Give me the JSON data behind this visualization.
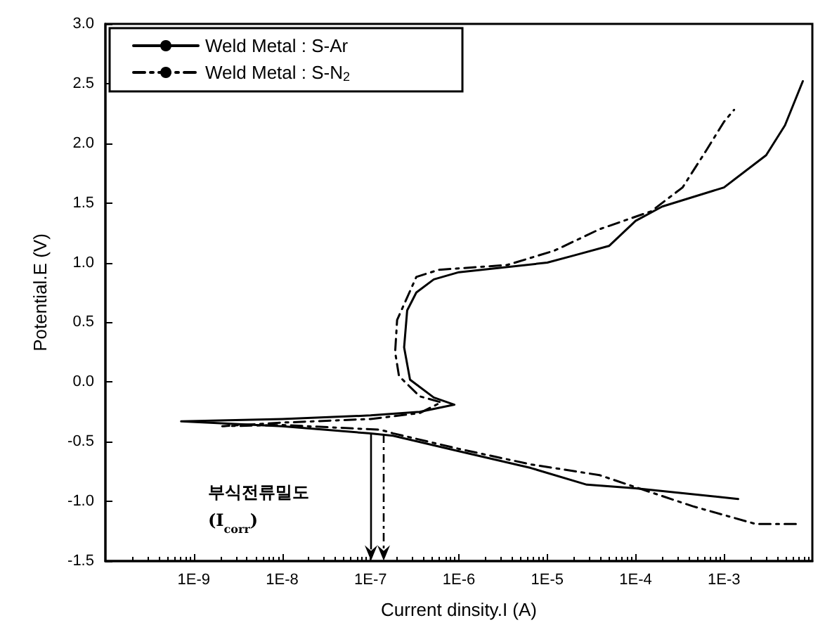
{
  "chart_data": {
    "type": "line",
    "xlabel": "Current dinsity.I (A)",
    "ylabel": "Potential.E (V)",
    "log": "x",
    "xlim": [
      1e-10,
      0.01
    ],
    "xticks": [
      {
        "value": 1e-09,
        "label": "1E-9"
      },
      {
        "value": 1e-08,
        "label": "1E-8"
      },
      {
        "value": 1e-07,
        "label": "1E-7"
      },
      {
        "value": 1e-06,
        "label": "1E-6"
      },
      {
        "value": 1e-05,
        "label": "1E-5"
      },
      {
        "value": 0.0001,
        "label": "1E-4"
      },
      {
        "value": 0.001,
        "label": "1E-3"
      }
    ],
    "ylim": [
      -1.5,
      3.0
    ],
    "yticks": [
      {
        "value": -1.5,
        "label": "-1.5"
      },
      {
        "value": -1.0,
        "label": "-1.0"
      },
      {
        "value": -0.5,
        "label": "-0.5"
      },
      {
        "value": 0,
        "label": "0.0"
      },
      {
        "value": 0.5,
        "label": "0.5"
      },
      {
        "value": 1.0,
        "label": "1.0"
      },
      {
        "value": 1.5,
        "label": "1.5"
      },
      {
        "value": 2.0,
        "label": "2.0"
      },
      {
        "value": 2.5,
        "label": "2.5"
      },
      {
        "value": 3.0,
        "label": "3.0"
      }
    ],
    "grid": false,
    "legend": "top left",
    "marker": "none",
    "series": [
      {
        "name": "Weld Metal : S-Ar",
        "color": "#000000",
        "line_style": "solid",
        "x": [
          0.00145,
          0.0001,
          2.8e-05,
          6.5e-06,
          1e-06,
          1.8e-07,
          9.6e-08,
          1e-08,
          7.2e-10,
          1e-08,
          1e-07,
          3.6e-07,
          8.9e-07,
          5.2e-07,
          2.8e-07,
          2.4e-07,
          2.6e-07,
          3.3e-07,
          5.2e-07,
          1e-06,
          1e-05,
          2e-05,
          5e-05,
          0.0001,
          0.0002,
          0.001,
          0.003,
          0.0049,
          0.0078
        ],
        "values": [
          -0.98,
          -0.89,
          -0.86,
          -0.72,
          -0.58,
          -0.45,
          -0.43,
          -0.37,
          -0.33,
          -0.31,
          -0.28,
          -0.25,
          -0.19,
          -0.13,
          0.02,
          0.29,
          0.6,
          0.75,
          0.86,
          0.92,
          1.0,
          1.06,
          1.14,
          1.35,
          1.47,
          1.63,
          1.9,
          2.15,
          2.52
        ]
      },
      {
        "name": "Weld Metal : S-N$_{2}$",
        "color": "#000000",
        "line_style": "dashed",
        "x": [
          0.0065,
          0.0023,
          0.00044,
          3.9e-05,
          6.5e-06,
          1e-06,
          1.8e-07,
          1.3e-07,
          1e-08,
          2.1e-09,
          1e-08,
          1e-07,
          3.6e-07,
          6.3e-07,
          3.6e-07,
          2.1e-07,
          1.9e-07,
          2e-07,
          3.3e-07,
          5.9e-07,
          3.5e-06,
          1.2e-05,
          3.9e-05,
          0.00015,
          0.00034,
          0.00063,
          0.001,
          0.0013
        ],
        "values": [
          -1.19,
          -1.19,
          -1.04,
          -0.78,
          -0.69,
          -0.56,
          -0.43,
          -0.4,
          -0.36,
          -0.37,
          -0.34,
          -0.31,
          -0.26,
          -0.17,
          -0.12,
          0.05,
          0.25,
          0.52,
          0.88,
          0.94,
          0.98,
          1.1,
          1.28,
          1.43,
          1.63,
          1.94,
          2.18,
          2.28
        ]
      }
    ],
    "ref_lines": [
      {
        "axis": "x",
        "value": 1e-07,
        "line_style": "solid",
        "color": "#000000"
      },
      {
        "axis": "x",
        "value": 1.4e-07,
        "line_style": "dashed",
        "color": "#000000"
      }
    ],
    "annotations": [
      "부식전류밀도 (I$_{corr}$)"
    ]
  }
}
